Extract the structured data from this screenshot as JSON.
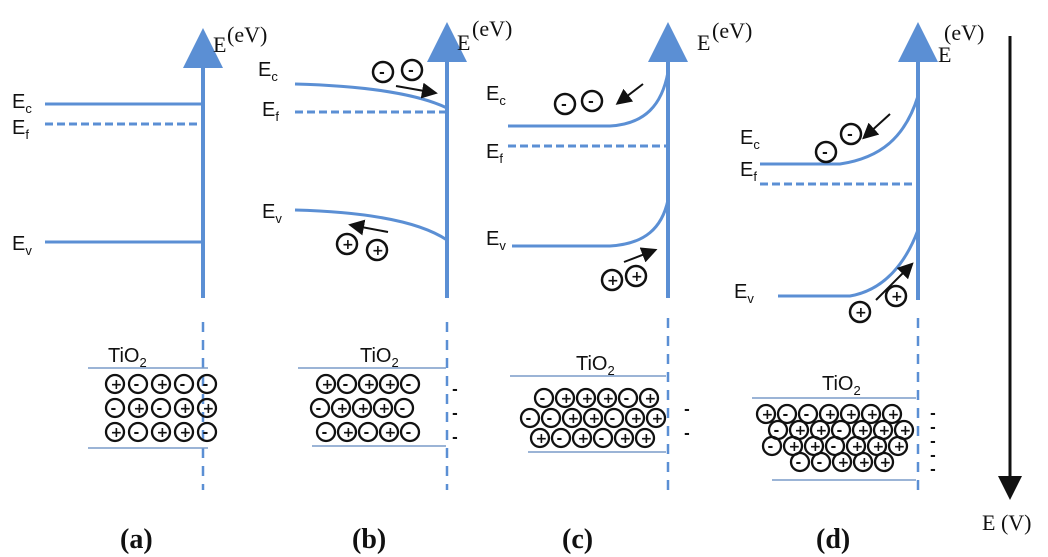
{
  "panels": [
    {
      "label": "(a)",
      "axis_label": "E",
      "unit": "(eV)",
      "levels": {
        "ec": "E",
        "ec_sub": "c",
        "ef": "E",
        "ef_sub": "f",
        "ev": "E",
        "ev_sub": "v"
      },
      "material": "TiO",
      "material_sub": "2",
      "particle_rows": [
        [
          "+",
          "-",
          "+",
          "-",
          "-"
        ],
        [
          "-",
          "+",
          "-",
          "+",
          "+"
        ],
        [
          "+",
          "-",
          "+",
          "+",
          "-"
        ]
      ]
    },
    {
      "label": "(b)",
      "axis_label": "E",
      "unit": "(eV)",
      "levels": {
        "ec": "E",
        "ec_sub": "c",
        "ef": "E",
        "ef_sub": "f",
        "ev": "E",
        "ev_sub": "v"
      },
      "electrons": [
        "-",
        "-"
      ],
      "holes": [
        "+",
        "+"
      ],
      "material": "TiO",
      "material_sub": "2",
      "particle_rows": [
        [
          "+",
          "-",
          "+",
          "+",
          "-"
        ],
        [
          "-",
          "+",
          "+",
          "+",
          "-"
        ],
        [
          "-",
          "+",
          "-",
          "+",
          "-"
        ]
      ],
      "surface_marks": [
        "-",
        "-",
        "-"
      ]
    },
    {
      "label": "(c)",
      "axis_label": "E",
      "unit": "(eV)",
      "levels": {
        "ec": "E",
        "ec_sub": "c",
        "ef": "E",
        "ef_sub": "f",
        "ev": "E",
        "ev_sub": "v"
      },
      "electrons": [
        "-",
        "-"
      ],
      "holes": [
        "+",
        "+"
      ],
      "material": "TiO",
      "material_sub": "2",
      "particle_rows": [
        [
          "-",
          "+",
          "+",
          "+",
          "-",
          "+"
        ],
        [
          "-",
          "-",
          "+",
          "+",
          "-",
          "+",
          "+"
        ],
        [
          "+",
          "-",
          "+",
          "-",
          "+",
          "+"
        ]
      ],
      "surface_marks": [
        "-",
        "-"
      ]
    },
    {
      "label": "(d)",
      "axis_label": "E",
      "unit": "(eV)",
      "levels": {
        "ec": "E",
        "ec_sub": "c",
        "ef": "E",
        "ef_sub": "f",
        "ev": "E",
        "ev_sub": "v"
      },
      "electrons": [
        "-",
        "-"
      ],
      "holes": [
        "+",
        "+"
      ],
      "material": "TiO",
      "material_sub": "2",
      "particle_rows": [
        [
          "+",
          "-",
          "-",
          "+",
          "+",
          "+",
          "+"
        ],
        [
          "-",
          "+",
          "+",
          "-",
          "+",
          "+",
          "+"
        ],
        [
          "-",
          "+",
          "+",
          "-",
          "+",
          "+",
          "+"
        ],
        [
          "-",
          "-",
          "+",
          "+",
          "+"
        ]
      ],
      "surface_marks": [
        "-",
        "-",
        "-",
        "-",
        "-"
      ]
    }
  ],
  "potential_axis": {
    "label": "E (V)"
  },
  "colors": {
    "band": "#5b8fd4",
    "ink": "#111111",
    "grid": "#7a9cc8"
  }
}
